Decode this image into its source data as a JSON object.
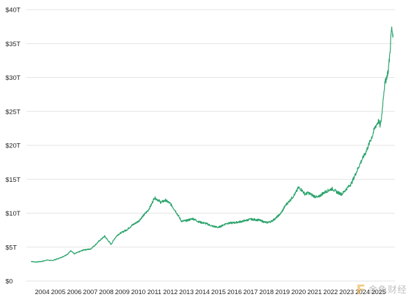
{
  "chart_data": {
    "type": "line",
    "title": "",
    "xlabel": "",
    "ylabel": "",
    "ylim": [
      0,
      40
    ],
    "y_unit": "trillion USD",
    "y_ticks": [
      "$0",
      "$5T",
      "$10T",
      "$15T",
      "$20T",
      "$25T",
      "$30T",
      "$35T",
      "$40T"
    ],
    "x_ticks": [
      "2004",
      "2005",
      "2006",
      "2007",
      "2008",
      "2009",
      "2010",
      "2011",
      "2012",
      "2013",
      "2014",
      "2015",
      "2016",
      "2017",
      "2018",
      "2019",
      "2020",
      "2021",
      "2022",
      "2023",
      "2024",
      "2025"
    ],
    "grid": true,
    "legend": "none",
    "line_color": "#2aa36b",
    "series": [
      {
        "x": [
          2003.3,
          2003.6,
          2004.0,
          2004.3,
          2004.6,
          2005.0,
          2005.3,
          2005.6,
          2005.8,
          2006.0,
          2006.3,
          2006.6,
          2007.0,
          2007.3,
          2007.6,
          2007.9,
          2008.1,
          2008.3,
          2008.5,
          2008.7,
          2009.0,
          2009.3,
          2009.6,
          2010.0,
          2010.3,
          2010.6,
          2010.8,
          2011.0,
          2011.2,
          2011.4,
          2011.7,
          2012.0,
          2012.3,
          2012.5,
          2012.7,
          2013.0,
          2013.4,
          2013.8,
          2014.2,
          2014.6,
          2015.0,
          2015.5,
          2016.0,
          2016.5,
          2017.0,
          2017.5,
          2018.0,
          2018.3,
          2018.6,
          2018.9,
          2019.2,
          2019.5,
          2019.8,
          2020.0,
          2020.2,
          2020.4,
          2020.6,
          2020.9,
          2021.2,
          2021.5,
          2021.8,
          2022.1,
          2022.4,
          2022.7,
          2023.0,
          2023.3,
          2023.6,
          2023.9,
          2024.2,
          2024.4,
          2024.6,
          2024.8,
          2025.0,
          2025.1,
          2025.2,
          2025.3,
          2025.4,
          2025.5,
          2025.6,
          2025.7,
          2025.8,
          2025.9
        ],
        "values": [
          2.9,
          2.8,
          2.9,
          3.1,
          3.0,
          3.3,
          3.6,
          4.0,
          4.5,
          4.0,
          4.3,
          4.6,
          4.7,
          5.3,
          6.0,
          6.6,
          6.0,
          5.4,
          6.2,
          6.8,
          7.2,
          7.6,
          8.2,
          8.8,
          9.6,
          10.4,
          11.2,
          12.3,
          12.0,
          11.6,
          11.9,
          11.4,
          10.4,
          9.6,
          8.8,
          8.9,
          9.2,
          8.7,
          8.5,
          8.1,
          7.9,
          8.5,
          8.6,
          8.8,
          9.1,
          9.0,
          8.6,
          8.8,
          9.3,
          10.0,
          11.2,
          12.0,
          12.9,
          13.8,
          13.4,
          12.8,
          13.0,
          12.6,
          12.3,
          12.9,
          13.3,
          13.6,
          13.1,
          12.8,
          13.6,
          14.4,
          16.0,
          17.6,
          19.0,
          20.2,
          21.4,
          22.8,
          23.6,
          22.8,
          24.5,
          27.5,
          29.2,
          30.1,
          31.0,
          33.5,
          37.2,
          36.4
        ]
      }
    ]
  },
  "watermark": {
    "text": "金色财经",
    "icon": "coin-logo-icon",
    "color": "#e8a93a"
  }
}
